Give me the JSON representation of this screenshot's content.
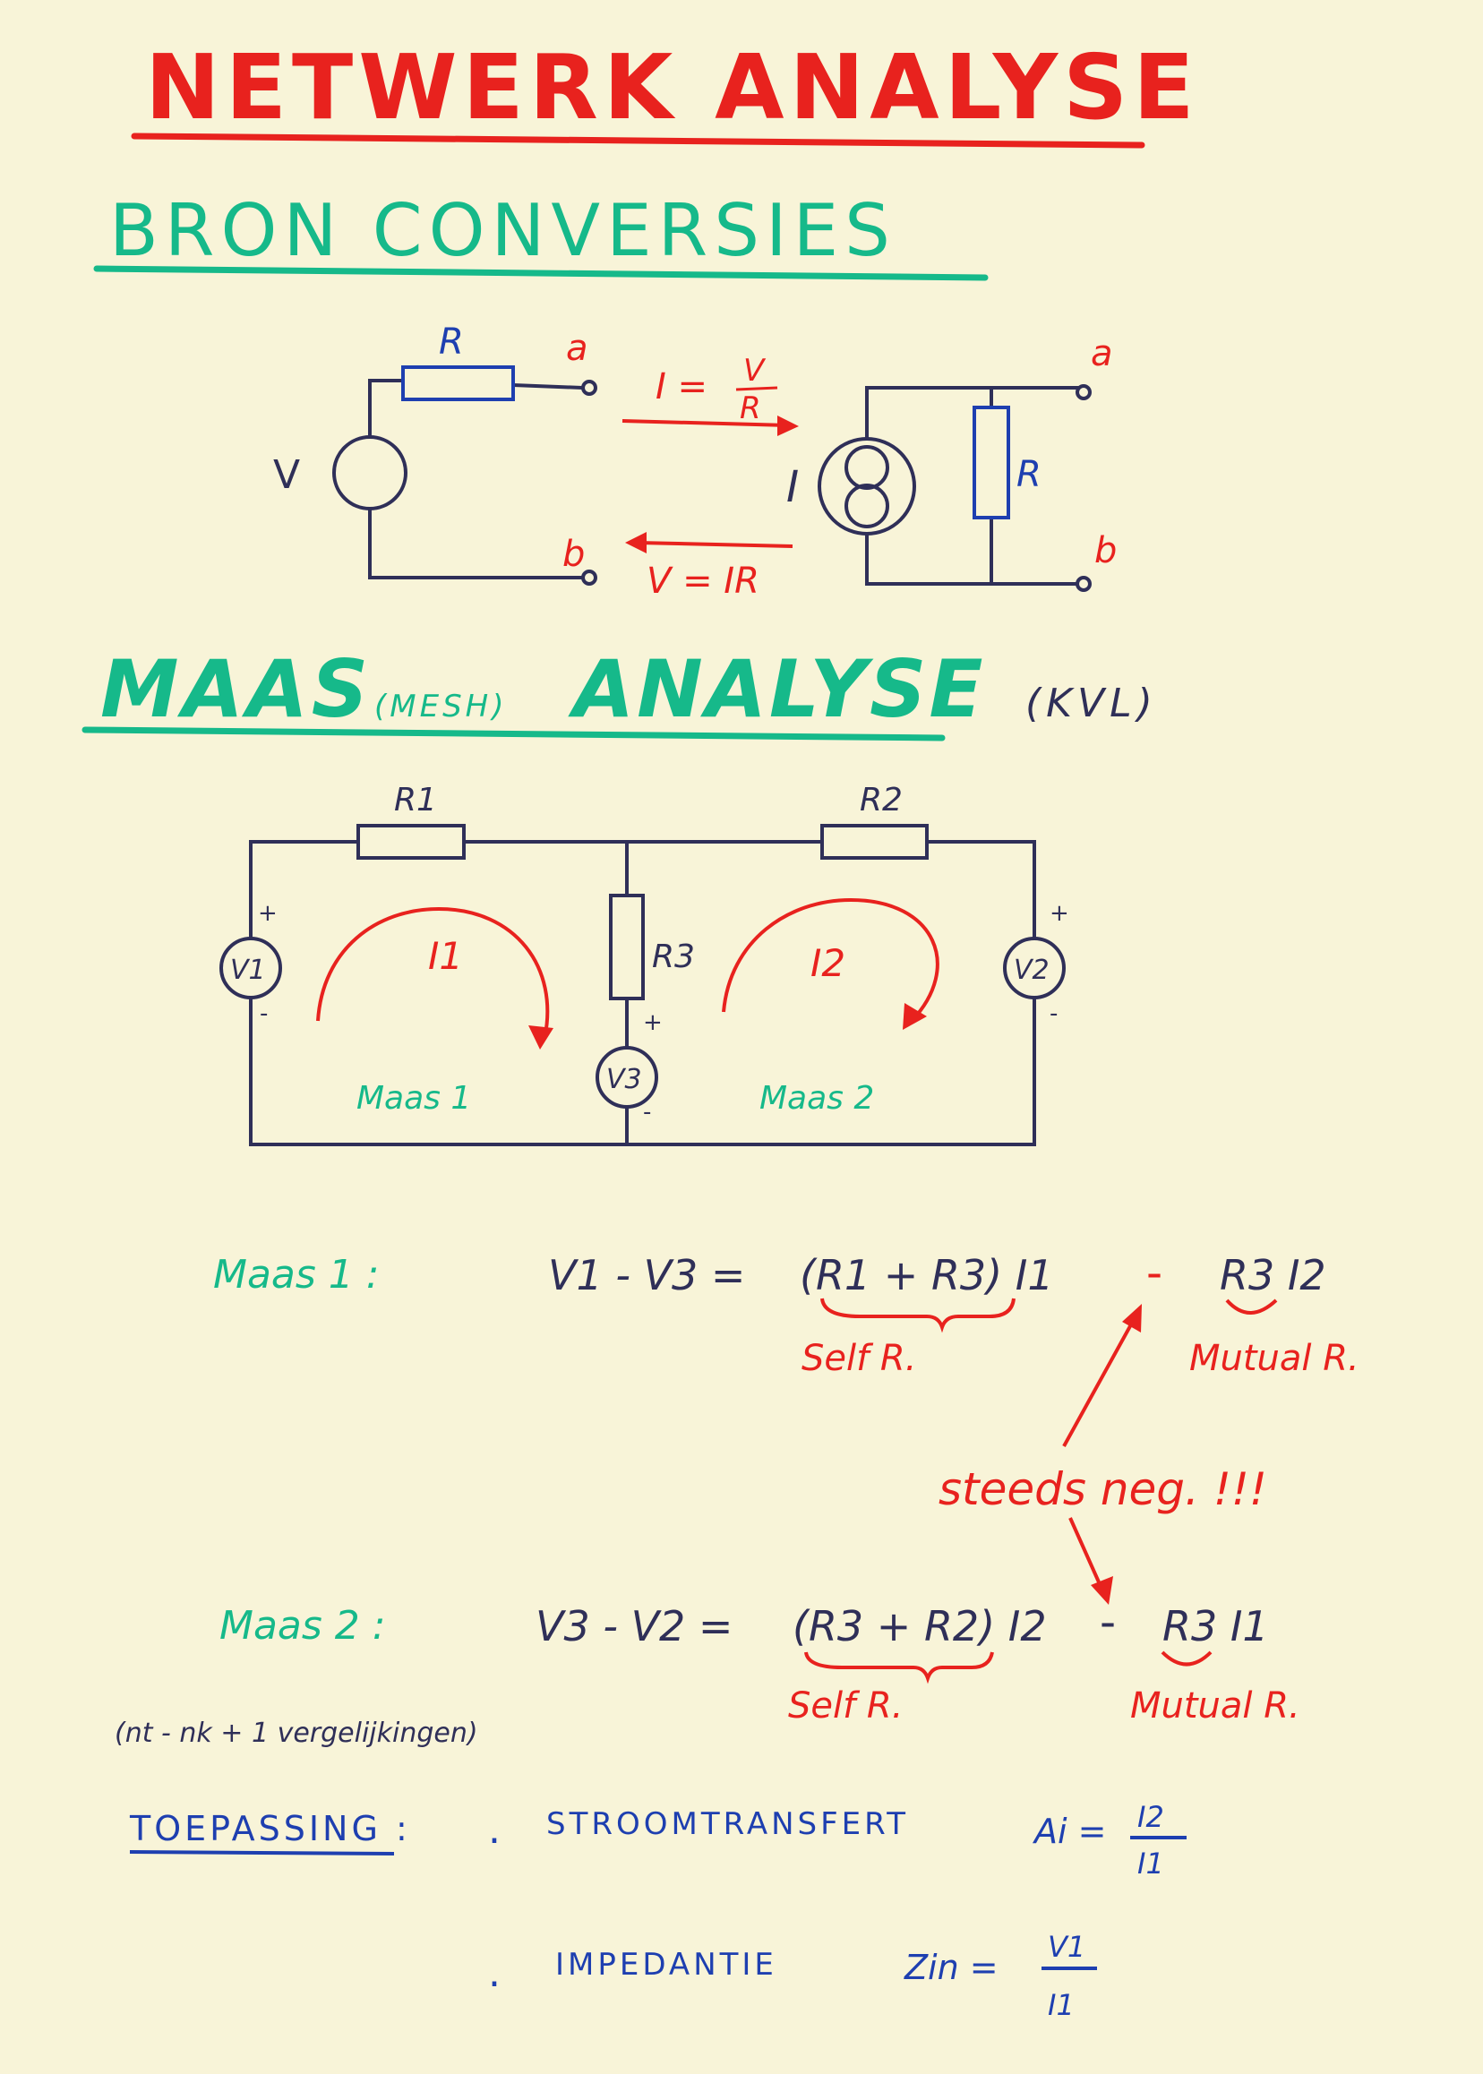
{
  "title": "NETWERK ANALYSE",
  "section1": {
    "heading": "BRON CONVERSIES",
    "left_circuit": {
      "source": "V",
      "resistor": "R",
      "terminal_a": "a",
      "terminal_b": "b"
    },
    "forward_rule": {
      "lhs": "I =",
      "numerator": "V",
      "denominator": "R"
    },
    "backward_rule": "V = IR",
    "right_circuit": {
      "source": "I",
      "resistor": "R",
      "terminal_a": "a",
      "terminal_b": "b"
    }
  },
  "section2": {
    "heading_main": "MAAS",
    "heading_paren": "(MESH)",
    "heading_end": "ANALYSE",
    "kvl": "(KVL)",
    "circuit": {
      "r1": "R1",
      "r2": "R2",
      "r3": "R3",
      "v1": "V1",
      "v2": "V2",
      "v3": "V3",
      "plus": "+",
      "minus": "-",
      "i1": "I1",
      "i2": "I2",
      "mesh1": "Maas 1",
      "mesh2": "Maas 2"
    }
  },
  "equations": {
    "eq1": {
      "label": "Maas 1 :",
      "lhs": "V1 - V3 =",
      "self": "(R1 + R3) I1",
      "minus": "-",
      "mutual": "R3 I2",
      "self_note": "Self R.",
      "mutual_note": "Mutual R."
    },
    "note_neg": "steeds neg. !!!",
    "eq2": {
      "label": "Maas 2 :",
      "lhs": "V3 - V2 =",
      "self": "(R3 + R2) I2",
      "minus": "-",
      "mutual": "R3 I1",
      "self_note": "Self R.",
      "mutual_note": "Mutual R."
    },
    "count_note": "(nt - nk + 1 vergelijkingen)"
  },
  "application": {
    "label": "TOEPASSING :",
    "item1": {
      "bullet": ".",
      "name": "STROOMTRANSFERT",
      "lhs": "Ai =",
      "numerator": "I2",
      "denominator": "I1"
    },
    "item2": {
      "bullet": ".",
      "name": "IMPEDANTIE",
      "lhs": "Zin =",
      "numerator": "V1",
      "denominator": "I1"
    }
  },
  "colors": {
    "paper": "#f8f4d8",
    "red": "#e8221e",
    "green": "#16b98a",
    "blue": "#1e3fb0",
    "ink": "#2f2f58"
  }
}
